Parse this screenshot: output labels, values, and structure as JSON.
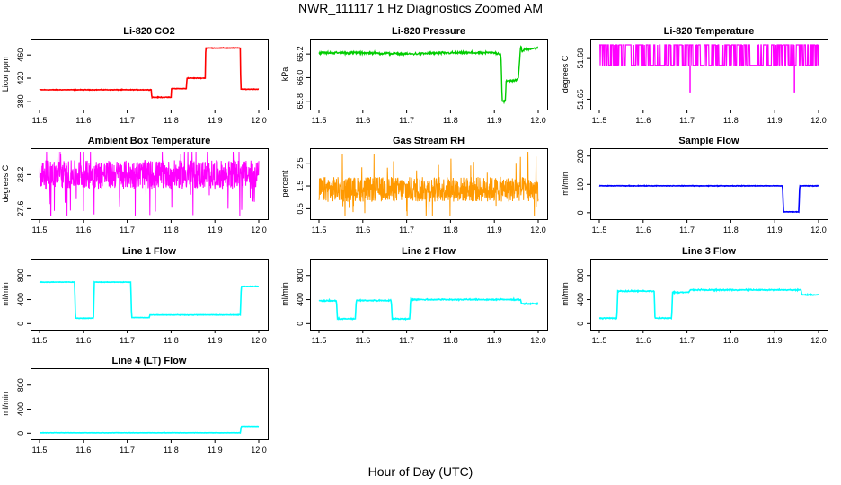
{
  "figure": {
    "title": "NWR_111117  1 Hz Diagnostics Zoomed AM",
    "xlabel": "Hour of Day (UTC)"
  },
  "chart_data": [
    {
      "type": "line",
      "title": "Li-820 CO2",
      "ylabel": "Licor ppm",
      "xlim": [
        11.5,
        12.0
      ],
      "ylim": [
        372,
        482
      ],
      "yticks": [
        "380",
        "420",
        "460"
      ],
      "yticks_values": [
        380,
        420,
        460
      ],
      "xticks": [
        "11.5",
        "11.6",
        "11.7",
        "11.8",
        "11.9",
        "12.0"
      ],
      "color": "#ff0000",
      "style": "step",
      "noise": 0.8,
      "series": [
        {
          "x": [
            11.5,
            11.755,
            11.756,
            11.8,
            11.801,
            11.835,
            11.836,
            11.878,
            11.879,
            11.958,
            11.959,
            12.0
          ],
          "y": [
            400,
            400,
            387,
            387,
            402,
            402,
            420,
            420,
            472,
            472,
            401,
            401
          ]
        }
      ]
    },
    {
      "type": "line",
      "title": "Li-820 Pressure",
      "ylabel": "kPa",
      "xlim": [
        11.5,
        12.0
      ],
      "ylim": [
        65.76,
        66.3
      ],
      "yticks": [
        "65.8",
        "66.0",
        "66.2"
      ],
      "yticks_values": [
        65.8,
        66.0,
        66.2
      ],
      "xticks": [
        "11.5",
        "11.6",
        "11.7",
        "11.8",
        "11.9",
        "12.0"
      ],
      "color": "#00cc00",
      "style": "noisy",
      "noise": 0.015,
      "series": [
        {
          "x": [
            11.5,
            11.6,
            11.7,
            11.8,
            11.9,
            11.915,
            11.918,
            11.925,
            11.927,
            11.952,
            11.955,
            11.96,
            11.963,
            11.97,
            12.0
          ],
          "y": [
            66.21,
            66.21,
            66.2,
            66.21,
            66.21,
            66.2,
            65.8,
            65.8,
            65.97,
            65.98,
            66.0,
            66.28,
            66.22,
            66.24,
            66.25
          ]
        }
      ]
    },
    {
      "type": "line",
      "title": "Li-820 Temperature",
      "ylabel": "degrees C",
      "xlim": [
        11.5,
        12.0
      ],
      "ylim": [
        51.645,
        51.692
      ],
      "yticks": [
        "51.65",
        "51.68"
      ],
      "yticks_values": [
        51.65,
        51.68
      ],
      "xticks": [
        "11.5",
        "11.6",
        "11.7",
        "11.8",
        "11.9",
        "12.0"
      ],
      "color": "#ff00ff",
      "style": "flicker",
      "top": 51.69,
      "bottom": 51.675,
      "spikes": [
        [
          11.707,
          51.655
        ],
        [
          11.945,
          51.655
        ]
      ],
      "series": [
        {
          "x": [
            11.5,
            12.0
          ],
          "y": [
            51.69,
            51.675
          ]
        }
      ]
    },
    {
      "type": "line",
      "title": "Ambient Box Temperature",
      "ylabel": "degrees C",
      "xlim": [
        11.5,
        12.0
      ],
      "ylim": [
        27.48,
        28.6
      ],
      "yticks": [
        "27.6",
        "28.2"
      ],
      "yticks_values": [
        27.6,
        28.2
      ],
      "xticks": [
        "11.5",
        "11.6",
        "11.7",
        "11.8",
        "11.9",
        "12.0"
      ],
      "color": "#ff00ff",
      "style": "band",
      "center": 28.2,
      "spread": 0.25,
      "series": [
        {
          "x": [
            11.5,
            12.0
          ],
          "y": [
            28.2,
            28.2
          ]
        }
      ]
    },
    {
      "type": "line",
      "title": "Gas Stream RH",
      "ylabel": "percent",
      "xlim": [
        11.5,
        12.0
      ],
      "ylim": [
        0.2,
        3.0
      ],
      "yticks": [
        "0.5",
        "1.5",
        "2.5"
      ],
      "yticks_values": [
        0.5,
        1.5,
        2.5
      ],
      "xticks": [
        "11.5",
        "11.6",
        "11.7",
        "11.8",
        "11.9",
        "12.0"
      ],
      "color": "#ff9900",
      "style": "band",
      "center": 1.35,
      "spread": 0.55,
      "series": [
        {
          "x": [
            11.5,
            12.0
          ],
          "y": [
            1.35,
            1.35
          ]
        }
      ]
    },
    {
      "type": "line",
      "title": "Sample Flow",
      "ylabel": "ml/min",
      "xlim": [
        11.5,
        12.0
      ],
      "ylim": [
        -10,
        215
      ],
      "yticks": [
        "0",
        "100",
        "200"
      ],
      "yticks_values": [
        0,
        100,
        200
      ],
      "xticks": [
        "11.5",
        "11.6",
        "11.7",
        "11.8",
        "11.9",
        "12.0"
      ],
      "color": "#0000ff",
      "style": "step",
      "noise": 1.5,
      "series": [
        {
          "x": [
            11.5,
            11.918,
            11.92,
            11.955,
            11.957,
            12.0
          ],
          "y": [
            95,
            95,
            3,
            3,
            95,
            95
          ]
        }
      ]
    },
    {
      "type": "line",
      "title": "Line 1 Flow",
      "ylabel": "ml/min",
      "xlim": [
        11.5,
        12.0
      ],
      "ylim": [
        -40,
        1020
      ],
      "yticks": [
        "0",
        "400",
        "800"
      ],
      "yticks_values": [
        0,
        400,
        800
      ],
      "xticks": [
        "11.5",
        "11.6",
        "11.7",
        "11.8",
        "11.9",
        "12.0"
      ],
      "color": "#00ffff",
      "style": "step",
      "noise": 6,
      "series": [
        {
          "x": [
            11.5,
            11.58,
            11.582,
            11.623,
            11.625,
            11.708,
            11.71,
            11.75,
            11.752,
            11.958,
            11.96,
            12.0
          ],
          "y": [
            690,
            690,
            90,
            90,
            690,
            690,
            100,
            100,
            145,
            145,
            620,
            620
          ]
        }
      ]
    },
    {
      "type": "line",
      "title": "Line 2 Flow",
      "ylabel": "ml/min",
      "xlim": [
        11.5,
        12.0
      ],
      "ylim": [
        -40,
        1020
      ],
      "yticks": [
        "0",
        "400",
        "800"
      ],
      "yticks_values": [
        0,
        400,
        800
      ],
      "xticks": [
        "11.5",
        "11.6",
        "11.7",
        "11.8",
        "11.9",
        "12.0"
      ],
      "color": "#00ffff",
      "style": "step",
      "noise": 14,
      "series": [
        {
          "x": [
            11.5,
            11.54,
            11.542,
            11.583,
            11.585,
            11.665,
            11.667,
            11.707,
            11.709,
            11.96,
            11.962,
            12.0
          ],
          "y": [
            380,
            380,
            80,
            80,
            385,
            385,
            80,
            80,
            400,
            400,
            330,
            330
          ]
        }
      ]
    },
    {
      "type": "line",
      "title": "Line 3 Flow",
      "ylabel": "ml/min",
      "xlim": [
        11.5,
        12.0
      ],
      "ylim": [
        -40,
        1020
      ],
      "yticks": [
        "0",
        "400",
        "800"
      ],
      "yticks_values": [
        0,
        400,
        800
      ],
      "xticks": [
        "11.5",
        "11.6",
        "11.7",
        "11.8",
        "11.9",
        "12.0"
      ],
      "color": "#00ffff",
      "style": "step",
      "noise": 14,
      "series": [
        {
          "x": [
            11.5,
            11.54,
            11.542,
            11.625,
            11.627,
            11.665,
            11.667,
            11.705,
            11.707,
            11.96,
            11.962,
            12.0
          ],
          "y": [
            90,
            90,
            540,
            540,
            90,
            90,
            520,
            520,
            560,
            560,
            480,
            480
          ]
        }
      ]
    },
    {
      "type": "line",
      "title": "Line 4 (LT) Flow",
      "ylabel": "ml/min",
      "xlim": [
        11.5,
        12.0
      ],
      "ylim": [
        -40,
        1020
      ],
      "yticks": [
        "0",
        "400",
        "800"
      ],
      "yticks_values": [
        0,
        400,
        800
      ],
      "xticks": [
        "11.5",
        "11.6",
        "11.7",
        "11.8",
        "11.9",
        "12.0"
      ],
      "color": "#00ffff",
      "style": "step",
      "noise": 4,
      "series": [
        {
          "x": [
            11.5,
            11.958,
            11.96,
            12.0
          ],
          "y": [
            8,
            8,
            115,
            115
          ]
        }
      ]
    }
  ]
}
